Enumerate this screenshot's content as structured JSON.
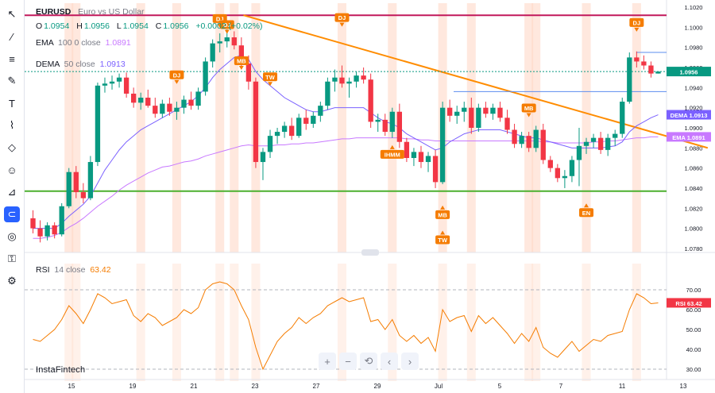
{
  "symbol": "EURUSD",
  "description": "Euro vs US Dollar",
  "ohlc": {
    "o_label": "O",
    "o": "1.0954",
    "h_label": "H",
    "h": "1.0956",
    "l_label": "L",
    "l": "1.0954",
    "c_label": "C",
    "c": "1.0956",
    "change": "+0.0002 (+0.02%)"
  },
  "ema_legend": {
    "name": "EMA",
    "params": "100 0 close",
    "value": "1.0891"
  },
  "dema_legend": {
    "name": "DEMA",
    "params": "50 close",
    "value": "1.0913"
  },
  "rsi_legend": {
    "name": "RSI",
    "params": "14 close",
    "value": "63.42"
  },
  "brand": "InstaFintech",
  "zoom_buttons": [
    "+",
    "−",
    "⟲",
    "‹",
    "›"
  ],
  "tools": [
    "cursor-icon",
    "line-tool-icon",
    "fib-icon",
    "brush-icon",
    "text-icon",
    "pattern-icon",
    "shape-icon",
    "emoji-icon",
    "measure-icon",
    "magnet-icon",
    "eye-icon",
    "lock-icon",
    "settings-icon"
  ],
  "colors": {
    "up": "#089981",
    "down": "#f23645",
    "ema": "#c879ff",
    "dema": "#7b61ff",
    "trend": "#ff8c00",
    "support": "#4caf2e",
    "resistance": "#c2185b",
    "highlight": "#ffd6c2",
    "rsi": "#f57c00",
    "label_bg": "#f57c00"
  },
  "chart_data": [
    {
      "type": "candlestick",
      "title": "EURUSD",
      "x_ticks": [
        "15",
        "19",
        "21",
        "23",
        "27",
        "29",
        "Jul",
        "5",
        "7",
        "11",
        "13"
      ],
      "y_ticks": [
        "1.1020",
        "1.1000",
        "1.0980",
        "1.0960",
        "1.0940",
        "1.0920",
        "1.0900",
        "1.0880",
        "1.0860",
        "1.0840",
        "1.0820",
        "1.0800",
        "1.0780"
      ],
      "ylim": [
        1.0776,
        1.1024
      ],
      "last_price": "1.0956",
      "ema_value": "1.0891",
      "dema_value": "1.0913",
      "axis_tags": {
        "dema": "DEMA",
        "ema": "EMA"
      },
      "candles": [
        [
          1.081,
          1.0818,
          1.0795,
          1.08
        ],
        [
          1.08,
          1.0808,
          1.0786,
          1.0792
        ],
        [
          1.0792,
          1.0806,
          1.0788,
          1.0803
        ],
        [
          1.0803,
          1.0806,
          1.079,
          1.0794
        ],
        [
          1.0794,
          1.0825,
          1.0792,
          1.0822
        ],
        [
          1.0822,
          1.086,
          1.082,
          1.0856
        ],
        [
          1.0856,
          1.0862,
          1.083,
          1.0836
        ],
        [
          1.0836,
          1.0845,
          1.0825,
          1.083
        ],
        [
          1.083,
          1.0872,
          1.0828,
          1.0866
        ],
        [
          1.0866,
          1.0945,
          1.0862,
          1.0942
        ],
        [
          1.0942,
          1.095,
          1.0935,
          1.0944
        ],
        [
          1.0944,
          1.0952,
          1.0938,
          1.0946
        ],
        [
          1.0946,
          1.0954,
          1.094,
          1.095
        ],
        [
          1.095,
          1.0955,
          1.093,
          1.0934
        ],
        [
          1.0934,
          1.094,
          1.092,
          1.0925
        ],
        [
          1.0925,
          1.0935,
          1.0918,
          1.093
        ],
        [
          1.093,
          1.0938,
          1.092,
          1.0922
        ],
        [
          1.0922,
          1.093,
          1.091,
          1.0914
        ],
        [
          1.0914,
          1.0928,
          1.091,
          1.0924
        ],
        [
          1.0924,
          1.093,
          1.0912,
          1.0916
        ],
        [
          1.0916,
          1.0926,
          1.0908,
          1.092
        ],
        [
          1.092,
          1.0932,
          1.0914,
          1.0928
        ],
        [
          1.0928,
          1.0936,
          1.0918,
          1.0922
        ],
        [
          1.0922,
          1.094,
          1.0918,
          1.0936
        ],
        [
          1.0936,
          1.097,
          1.0932,
          1.0966
        ],
        [
          1.0966,
          1.0988,
          1.096,
          1.0984
        ],
        [
          1.0984,
          1.0994,
          1.0975,
          1.0986
        ],
        [
          1.0986,
          1.0998,
          1.098,
          1.099
        ],
        [
          1.099,
          1.0996,
          1.0978,
          1.0982
        ],
        [
          1.0982,
          1.099,
          1.096,
          1.0964
        ],
        [
          1.0964,
          1.0972,
          1.0938,
          1.0946
        ],
        [
          1.0946,
          1.095,
          1.086,
          1.0866
        ],
        [
          1.0866,
          1.088,
          1.0848,
          1.0876
        ],
        [
          1.0876,
          1.0898,
          1.087,
          1.0892
        ],
        [
          1.0892,
          1.09,
          1.0884,
          1.0896
        ],
        [
          1.0896,
          1.0906,
          1.089,
          1.0902
        ],
        [
          1.0902,
          1.091,
          1.0888,
          1.0892
        ],
        [
          1.0892,
          1.0914,
          1.089,
          1.091
        ],
        [
          1.091,
          1.0918,
          1.0898,
          1.0904
        ],
        [
          1.0904,
          1.0916,
          1.09,
          1.0912
        ],
        [
          1.0912,
          1.0926,
          1.0906,
          1.0922
        ],
        [
          1.0922,
          1.095,
          1.0918,
          1.0946
        ],
        [
          1.0946,
          1.0958,
          1.0936,
          1.095
        ],
        [
          1.095,
          1.0962,
          1.094,
          1.0944
        ],
        [
          1.0944,
          1.095,
          1.093,
          1.0946
        ],
        [
          1.0946,
          1.0956,
          1.094,
          1.0952
        ],
        [
          1.0952,
          1.096,
          1.0944,
          1.0948
        ],
        [
          1.0948,
          1.0954,
          1.09,
          1.0906
        ],
        [
          1.0906,
          1.0914,
          1.0896,
          1.0908
        ],
        [
          1.0908,
          1.0914,
          1.0892,
          1.0896
        ],
        [
          1.0896,
          1.092,
          1.089,
          1.0916
        ],
        [
          1.0916,
          1.0924,
          1.088,
          1.0886
        ],
        [
          1.0886,
          1.089,
          1.0866,
          1.087
        ],
        [
          1.087,
          1.088,
          1.0862,
          1.0876
        ],
        [
          1.0876,
          1.0882,
          1.086,
          1.0866
        ],
        [
          1.0866,
          1.0876,
          1.0856,
          1.0872
        ],
        [
          1.0872,
          1.0878,
          1.084,
          1.0846
        ],
        [
          1.0846,
          1.0926,
          1.0844,
          1.092
        ],
        [
          1.092,
          1.0928,
          1.0906,
          1.0912
        ],
        [
          1.0912,
          1.0922,
          1.0904,
          1.0916
        ],
        [
          1.0916,
          1.0926,
          1.0906,
          1.092
        ],
        [
          1.092,
          1.093,
          1.0894,
          1.09
        ],
        [
          1.09,
          1.0924,
          1.0896,
          1.092
        ],
        [
          1.092,
          1.0926,
          1.091,
          1.0914
        ],
        [
          1.0914,
          1.0924,
          1.0908,
          1.092
        ],
        [
          1.092,
          1.0926,
          1.0906,
          1.091
        ],
        [
          1.091,
          1.0918,
          1.0894,
          1.0898
        ],
        [
          1.0898,
          1.0904,
          1.088,
          1.0884
        ],
        [
          1.0884,
          1.0896,
          1.088,
          1.0892
        ],
        [
          1.0892,
          1.0896,
          1.0876,
          1.088
        ],
        [
          1.088,
          1.0902,
          1.0876,
          1.0898
        ],
        [
          1.0898,
          1.0904,
          1.0864,
          1.0868
        ],
        [
          1.0868,
          1.0872,
          1.0856,
          1.086
        ],
        [
          1.086,
          1.0864,
          1.0846,
          1.085
        ],
        [
          1.085,
          1.0858,
          1.084,
          1.0852
        ],
        [
          1.0852,
          1.0872,
          1.0846,
          1.0868
        ],
        [
          1.0868,
          1.09,
          1.0842,
          1.0882
        ],
        [
          1.0882,
          1.089,
          1.0874,
          1.0886
        ],
        [
          1.0886,
          1.0894,
          1.088,
          1.089
        ],
        [
          1.089,
          1.0896,
          1.0874,
          1.0878
        ],
        [
          1.0878,
          1.0894,
          1.0872,
          1.089
        ],
        [
          1.089,
          1.0898,
          1.0882,
          1.0894
        ],
        [
          1.0894,
          1.093,
          1.089,
          1.0926
        ],
        [
          1.0926,
          1.0975,
          1.0924,
          1.097
        ],
        [
          1.097,
          1.0976,
          1.096,
          1.0966
        ],
        [
          1.0966,
          1.0972,
          1.0958,
          1.0962
        ],
        [
          1.0962,
          1.0966,
          1.095,
          1.0954
        ],
        [
          1.0954,
          1.0956,
          1.0954,
          1.0956
        ]
      ],
      "ema_series": [
        1.079,
        1.079,
        1.0791,
        1.0793,
        1.0796,
        1.0801,
        1.0805,
        1.081,
        1.0816,
        1.0822,
        1.0827,
        1.0832,
        1.0838,
        1.0843,
        1.0847,
        1.0851,
        1.0855,
        1.0858,
        1.0861,
        1.0862,
        1.0864,
        1.0866,
        1.0867,
        1.0869,
        1.0872,
        1.0874,
        1.0876,
        1.0878,
        1.088,
        1.0882,
        1.0883,
        1.0882,
        1.0882,
        1.0882,
        1.0883,
        1.0883,
        1.0884,
        1.0884,
        1.0885,
        1.0885,
        1.0886,
        1.0887,
        1.0888,
        1.0889,
        1.0889,
        1.089,
        1.089,
        1.089,
        1.089,
        1.089,
        1.089,
        1.089,
        1.0889,
        1.0889,
        1.0888,
        1.0888,
        1.0887,
        1.0887,
        1.0887,
        1.0887,
        1.0887,
        1.0887,
        1.0887,
        1.0887,
        1.0887,
        1.0887,
        1.0887,
        1.0887,
        1.0887,
        1.0887,
        1.0887,
        1.0886,
        1.0886,
        1.0885,
        1.0885,
        1.0885,
        1.0885,
        1.0885,
        1.0886,
        1.0886,
        1.0887,
        1.0887,
        1.0888,
        1.0889,
        1.089,
        1.089,
        1.0891,
        1.0891
      ],
      "dema_series": [
        1.08,
        1.08,
        1.08,
        1.08,
        1.0805,
        1.0812,
        1.0818,
        1.0824,
        1.0832,
        1.0845,
        1.0858,
        1.0868,
        1.0878,
        1.0886,
        1.0892,
        1.0898,
        1.0902,
        1.0906,
        1.091,
        1.0914,
        1.0918,
        1.0922,
        1.0926,
        1.0932,
        1.094,
        1.095,
        1.0958,
        1.0964,
        1.097,
        1.0972,
        1.0968,
        1.0956,
        1.0948,
        1.0942,
        1.0936,
        1.093,
        1.0926,
        1.0922,
        1.0918,
        1.0916,
        1.0916,
        1.0918,
        1.092,
        1.092,
        1.092,
        1.092,
        1.092,
        1.0915,
        1.091,
        1.0906,
        1.0904,
        1.09,
        1.0894,
        1.089,
        1.0886,
        1.0882,
        1.0878,
        1.088,
        1.0886,
        1.089,
        1.0894,
        1.0896,
        1.0898,
        1.0898,
        1.0898,
        1.0898,
        1.0896,
        1.0894,
        1.0892,
        1.089,
        1.089,
        1.0888,
        1.0886,
        1.0884,
        1.0882,
        1.088,
        1.088,
        1.088,
        1.088,
        1.088,
        1.0881,
        1.0882,
        1.0886,
        1.0896,
        1.0902,
        1.0906,
        1.091,
        1.0913
      ],
      "support_level": 1.0837,
      "resistance_level": 1.1012,
      "trendline": [
        [
          0,
          1.1012
        ],
        [
          95,
          1.088
        ]
      ],
      "markers": [
        {
          "i": 20,
          "label": "DJ",
          "dir": "down",
          "y": 1.0946
        },
        {
          "i": 26,
          "label": "DJ",
          "dir": "down",
          "y": 1.1002
        },
        {
          "i": 27,
          "label": "DJ",
          "dir": "down",
          "y": 1.0996
        },
        {
          "i": 29,
          "label": "MB",
          "dir": "down",
          "y": 1.096
        },
        {
          "i": 33,
          "label": "TW",
          "dir": "down",
          "y": 1.0944
        },
        {
          "i": 43,
          "label": "DJ",
          "dir": "down",
          "y": 1.1003
        },
        {
          "i": 50,
          "label": "IHMM",
          "dir": "up",
          "y": 1.0878
        },
        {
          "i": 57,
          "label": "MB",
          "dir": "up",
          "y": 1.0818
        },
        {
          "i": 57,
          "label": "TW",
          "dir": "up",
          "y": 1.0793
        },
        {
          "i": 69,
          "label": "MB",
          "dir": "down",
          "y": 1.0913
        },
        {
          "i": 77,
          "label": "EN",
          "dir": "up",
          "y": 1.082
        },
        {
          "i": 84,
          "label": "DJ",
          "dir": "down",
          "y": 1.0998
        }
      ],
      "highlight_bars": [
        5,
        6,
        15,
        20,
        26,
        28,
        31,
        43,
        50,
        57,
        61,
        69,
        70,
        77,
        84
      ]
    },
    {
      "type": "line",
      "title": "RSI",
      "y_ticks": [
        "70.00",
        "60.00",
        "50.00",
        "40.00",
        "30.00"
      ],
      "ylim": [
        28,
        76
      ],
      "levels": [
        70,
        30
      ],
      "last_value": "63.42",
      "values": [
        45,
        44,
        47,
        50,
        55,
        62,
        58,
        53,
        60,
        68,
        66,
        63,
        64,
        65,
        57,
        54,
        58,
        56,
        52,
        54,
        56,
        60,
        58,
        61,
        70,
        73,
        74,
        73,
        70,
        62,
        55,
        41,
        30,
        37,
        44,
        48,
        51,
        56,
        53,
        56,
        58,
        62,
        64,
        66,
        64,
        65,
        66,
        54,
        55,
        50,
        55,
        47,
        44,
        47,
        43,
        46,
        39,
        60,
        54,
        56,
        57,
        49,
        57,
        53,
        56,
        52,
        48,
        43,
        48,
        44,
        51,
        41,
        38,
        36,
        40,
        44,
        39,
        42,
        45,
        44,
        47,
        48,
        49,
        60,
        68,
        66,
        63,
        63.42
      ]
    }
  ]
}
